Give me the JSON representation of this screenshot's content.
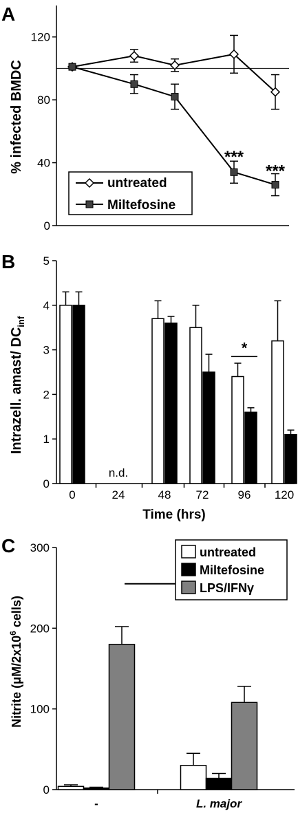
{
  "chart_data": [
    {
      "panel_label": "A",
      "type": "line",
      "ylabel": "% infected BMDC",
      "yticks": [
        "0",
        "40",
        "80",
        "120"
      ],
      "ylim": [
        0,
        140
      ],
      "x": [
        0,
        24,
        48,
        72,
        96,
        120
      ],
      "reference_line": 100,
      "legend_placement": "bottom-left",
      "series": [
        {
          "name": "untreated",
          "marker": "diamond-open",
          "x": [
            0,
            48,
            72,
            96,
            120
          ],
          "values": [
            101,
            108,
            102,
            109,
            85
          ],
          "errors": [
            0,
            4,
            4,
            12,
            11
          ]
        },
        {
          "name": "Miltefosine",
          "marker": "square-filled",
          "x": [
            0,
            48,
            72,
            96,
            120
          ],
          "values": [
            101,
            90,
            82,
            34,
            26
          ],
          "errors": [
            0,
            6,
            8,
            7,
            7
          ]
        }
      ],
      "annotations": [
        {
          "x": 96,
          "y": 45,
          "text": "***"
        },
        {
          "x": 120,
          "y": 36,
          "text": "***"
        }
      ]
    },
    {
      "panel_label": "B",
      "type": "bar",
      "ylabel_main": "Intrazell. amast/ DC",
      "ylabel_sub": "inf",
      "xlabel": "Time (hrs)",
      "categories": [
        "0",
        "24",
        "48",
        "72",
        "96",
        "120"
      ],
      "yticks": [
        "0",
        "1",
        "2",
        "3",
        "4",
        "5"
      ],
      "ylim": [
        0,
        5
      ],
      "series": [
        {
          "name": "untreated",
          "color": "#ffffff",
          "values": [
            4.0,
            null,
            3.7,
            3.5,
            2.4,
            3.2
          ],
          "errors": [
            0.3,
            null,
            0.4,
            0.5,
            0.3,
            0.9
          ]
        },
        {
          "name": "Miltefosine",
          "color": "#000000",
          "values": [
            4.0,
            null,
            3.6,
            2.5,
            1.6,
            1.1
          ],
          "errors": [
            0.3,
            null,
            0.15,
            0.4,
            0.1,
            0.1
          ]
        }
      ],
      "nd_label": "n.d.",
      "sig_label": "*"
    },
    {
      "panel_label": "C",
      "type": "bar",
      "ylabel_main": "Nitrite (μM/2x10",
      "ylabel_sup": "6",
      "ylabel_end": " cells)",
      "categories": [
        "-",
        "L. major"
      ],
      "yticks": [
        "0",
        "100",
        "200",
        "300"
      ],
      "ylim": [
        0,
        300
      ],
      "legend_placement": "top-right",
      "series": [
        {
          "name": "untreated",
          "color": "#ffffff",
          "values": [
            4,
            30
          ],
          "errors": [
            2,
            15
          ]
        },
        {
          "name": "Miltefosine",
          "color": "#000000",
          "values": [
            2,
            14
          ],
          "errors": [
            1,
            6
          ]
        },
        {
          "name": "LPS/IFNγ",
          "color": "#808080",
          "values": [
            180,
            108
          ],
          "errors": [
            22,
            20
          ]
        }
      ],
      "sig_label": "*"
    }
  ]
}
